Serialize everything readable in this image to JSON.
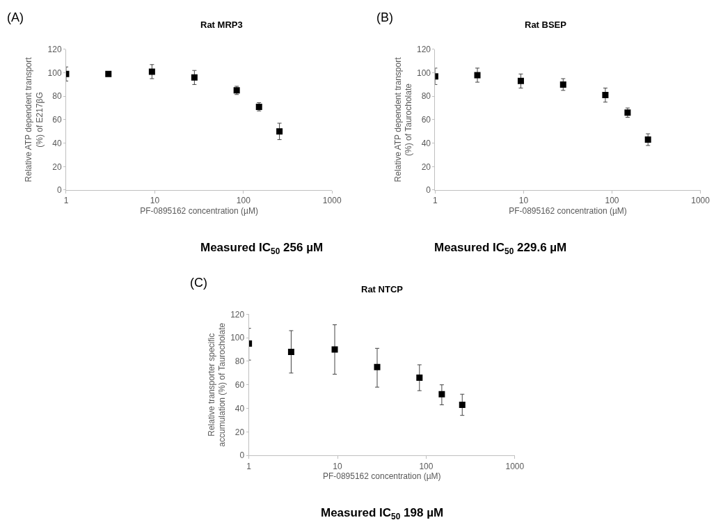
{
  "chart_data": [
    {
      "type": "scatter",
      "title": "Rat MRP3",
      "xlabel": "PF-0895162 concentration (µM)",
      "ylabel": "Relative ATP dependent transport (%) of E217βG",
      "annotations": [
        "(A)",
        "Measured IC$_{50}$ 256 µM"
      ],
      "log": "x",
      "xlim": [
        1,
        1000
      ],
      "xticks": [
        1,
        10,
        100,
        1000
      ],
      "ylim": [
        0,
        120
      ],
      "yticks": [
        0,
        20,
        40,
        60,
        80,
        100,
        120
      ],
      "marker": "square",
      "series": [
        {
          "color": "#000000",
          "x": [
            1,
            3,
            9.3,
            28,
            84,
            150,
            255
          ],
          "values": [
            99,
            99,
            101,
            96,
            85,
            71,
            50
          ],
          "errors": [
            6,
            null,
            6,
            6,
            3.5,
            3.5,
            7
          ]
        }
      ]
    },
    {
      "type": "scatter",
      "title": "Rat BSEP",
      "xlabel": "PF-0895162 concentration (µM)",
      "ylabel": "Relative ATP dependent transport (%) of Taurocholate",
      "annotations": [
        "(B)",
        "Measured IC$_{50}$ 229.6 µM"
      ],
      "log": "x",
      "xlim": [
        1,
        1000
      ],
      "xticks": [
        1,
        10,
        100,
        1000
      ],
      "ylim": [
        0,
        120
      ],
      "yticks": [
        0,
        20,
        40,
        60,
        80,
        100,
        120
      ],
      "marker": "square",
      "series": [
        {
          "color": "#000000",
          "x": [
            1,
            3,
            9.3,
            28,
            84,
            150,
            255
          ],
          "values": [
            97,
            98,
            93,
            90,
            81,
            66,
            43
          ],
          "errors": [
            7,
            6,
            6,
            5,
            6,
            4,
            5
          ]
        }
      ]
    },
    {
      "type": "scatter",
      "title": "Rat NTCP",
      "xlabel": "PF-0895162 concentration (µM)",
      "ylabel": "Relative transporter specific accumulation (%) of Taurocholate",
      "annotations": [
        "(C)",
        "Measured IC$_{50}$ 198 µM"
      ],
      "log": "x",
      "xlim": [
        1,
        1000
      ],
      "xticks": [
        1,
        10,
        100,
        1000
      ],
      "ylim": [
        0,
        120
      ],
      "yticks": [
        0,
        20,
        40,
        60,
        80,
        100,
        120
      ],
      "marker": "square",
      "series": [
        {
          "color": "#000000",
          "x": [
            1,
            3,
            9.3,
            28,
            84,
            150,
            255
          ],
          "values": [
            95,
            88,
            90,
            75,
            66,
            52,
            43
          ],
          "errors": [
            [
              81,
              108
            ],
            [
              70,
              106
            ],
            [
              69,
              111
            ],
            [
              58,
              91
            ],
            [
              55,
              77
            ],
            [
              43,
              60
            ],
            [
              34,
              52
            ]
          ]
        }
      ]
    }
  ]
}
